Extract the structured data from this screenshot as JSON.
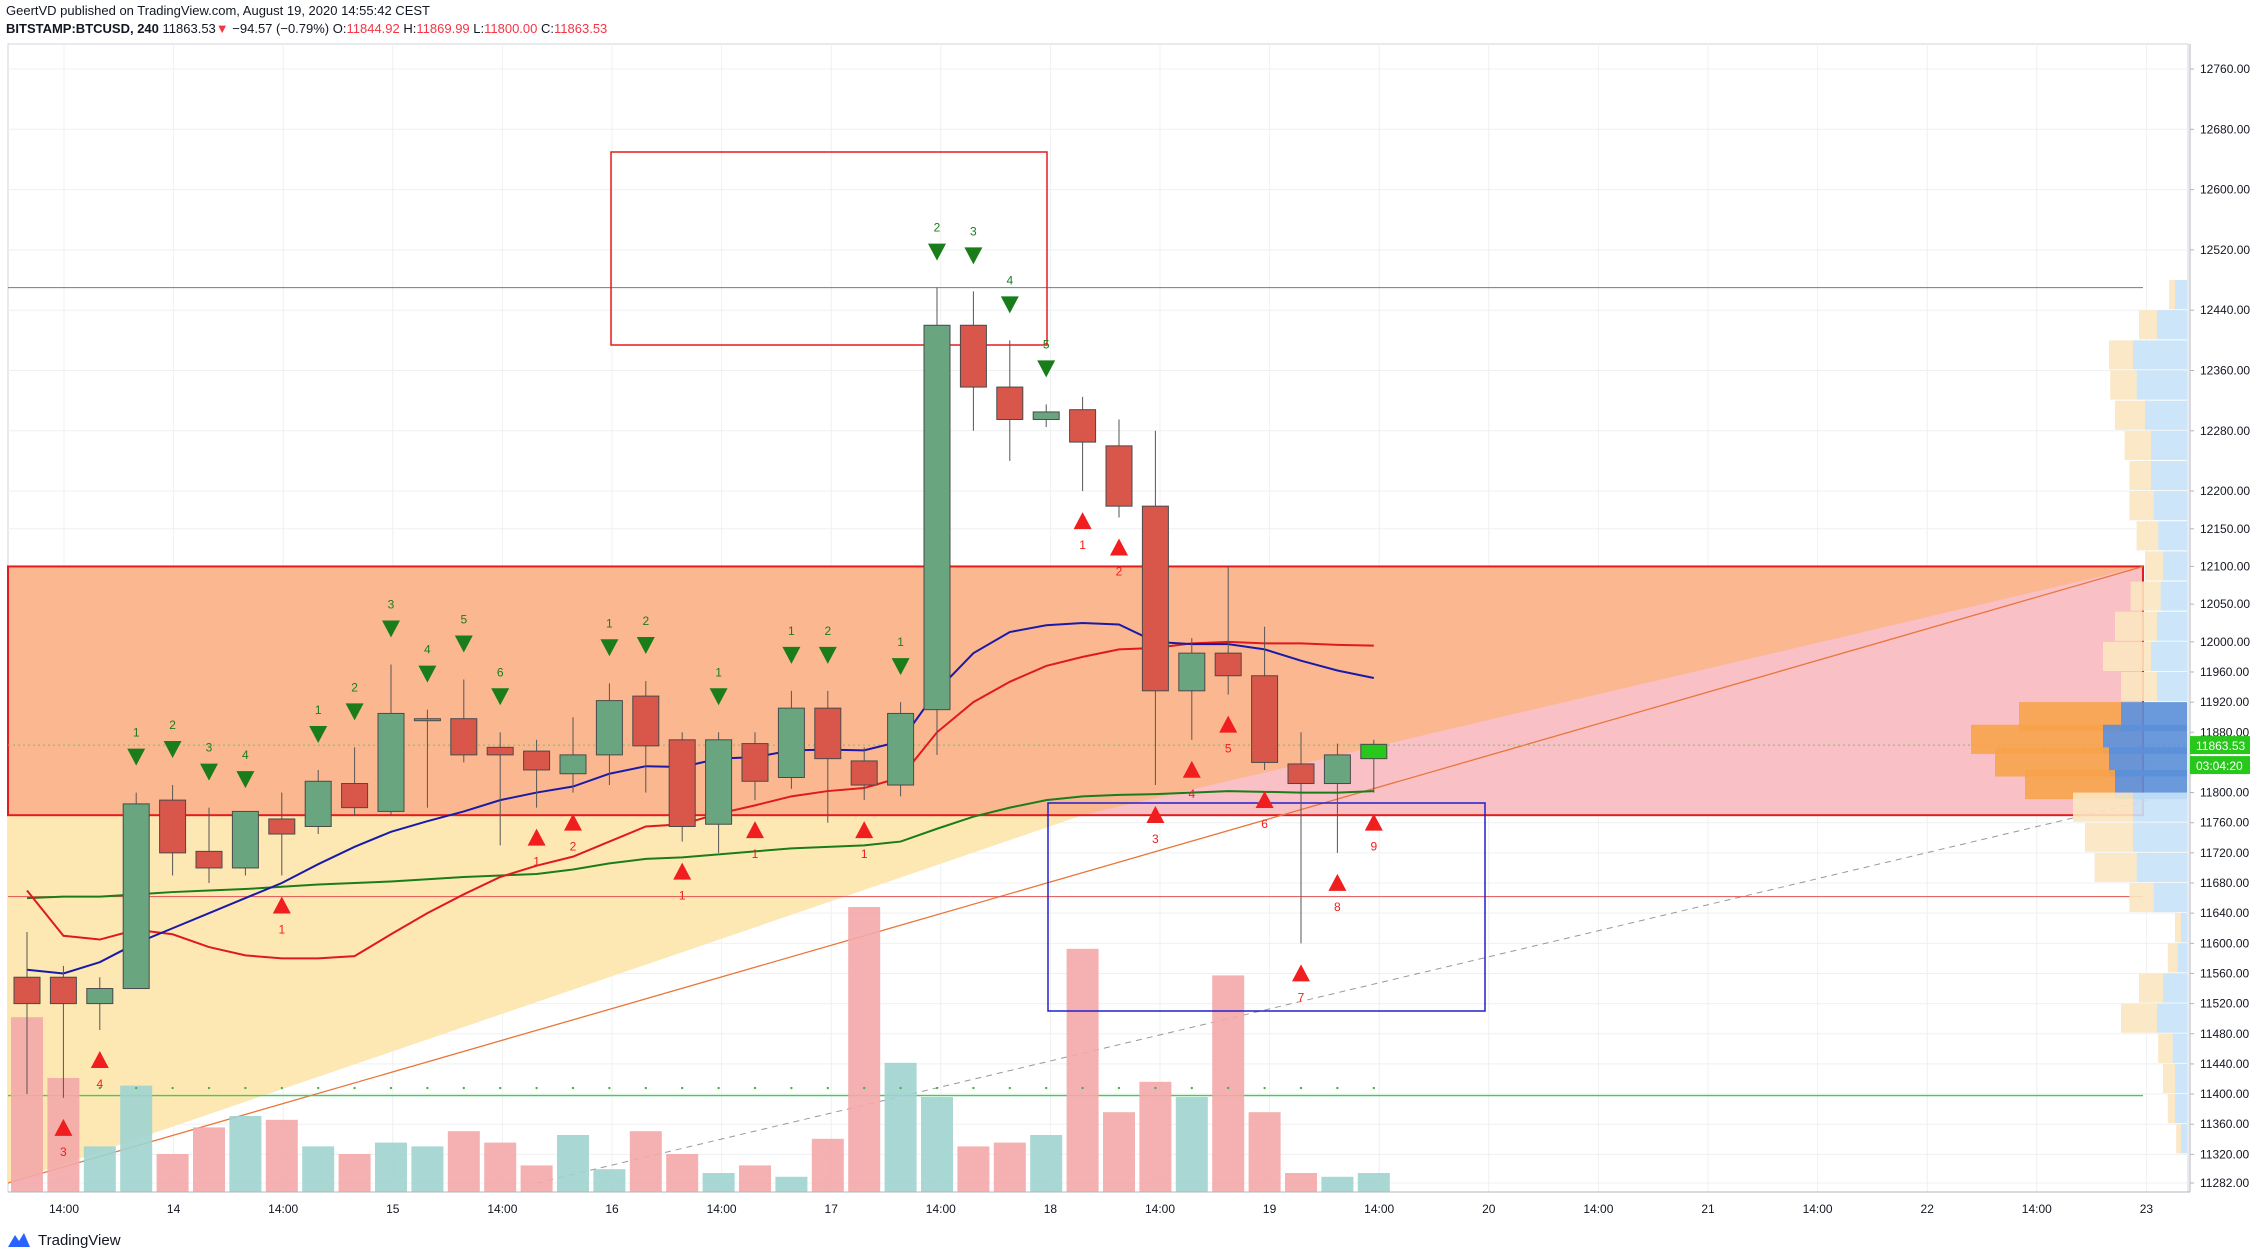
{
  "header": {
    "publisher_line": "GeertVD published on TradingView.com, August 19, 2020 14:55:42 CEST",
    "symbol": "BITSTAMP:BTCUSD, 240",
    "last": "11863.53",
    "change_arrow": "▼",
    "change": "−94.57 (−0.79%)",
    "o_label": "O:",
    "o_val": "11844.92",
    "h_label": "H:",
    "h_val": "11869.99",
    "l_label": "L:",
    "l_val": "11800.00",
    "c_label": "C:",
    "c_val": "11863.53"
  },
  "footer": {
    "brand": "TradingView"
  },
  "colors": {
    "up": "#69a57f",
    "down": "#d9574a",
    "ema_blue": "#1a1aa8",
    "ema_red": "#e0191e",
    "sma_green": "#1b7d19",
    "zone_orange": "#fbb48a",
    "zone_yellow": "#fde7b0",
    "zone_pink": "#f9c0c8",
    "box_red": "#e51c1c",
    "box_blue": "#2020cc",
    "td_green": "#1b7d19",
    "td_red": "#f01e1e",
    "price_tag": "#27c71b"
  },
  "chart_data": {
    "type": "candlestick",
    "interval": "240",
    "y_axis_ticks": [
      12760,
      12680,
      12600,
      12520,
      12440,
      12360,
      12280,
      12200,
      12150,
      12100,
      12050,
      12000,
      11960,
      11920,
      11880,
      11840,
      11800,
      11760,
      11720,
      11680,
      11640,
      11600,
      11560,
      11520,
      11480,
      11440,
      11400,
      11360,
      11320,
      11282
    ],
    "y_axis_labels": [
      "12760.00",
      "12680.00",
      "12600.00",
      "12520.00",
      "12440.00",
      "12360.00",
      "12280.00",
      "12200.00",
      "12150.00",
      "12100.00",
      "12050.00",
      "12000.00",
      "11960.00",
      "11920.00",
      "11880.00",
      "11840.00",
      "11800.00",
      "11760.00",
      "11720.00",
      "11680.00",
      "11640.00",
      "11600.00",
      "11560.00",
      "11520.00",
      "11480.00",
      "11440.00",
      "11400.00",
      "11360.00",
      "11320.00",
      "11282.00"
    ],
    "x_axis_labels": [
      "14:00",
      "14",
      "14:00",
      "15",
      "14:00",
      "16",
      "14:00",
      "17",
      "14:00",
      "18",
      "14:00",
      "19",
      "14:00",
      "20",
      "14:00",
      "21",
      "14:00",
      "22",
      "14:00",
      "23"
    ],
    "last_price_tag": "11863.53",
    "countdown_tag": "03:04:20",
    "candles": [
      {
        "o": 11555,
        "h": 11615,
        "l": 11400,
        "c": 11520
      },
      {
        "o": 11555,
        "h": 11570,
        "l": 11395,
        "c": 11520
      },
      {
        "o": 11520,
        "h": 11555,
        "l": 11485,
        "c": 11540
      },
      {
        "o": 11540,
        "h": 11800,
        "l": 11540,
        "c": 11785
      },
      {
        "o": 11790,
        "h": 11810,
        "l": 11690,
        "c": 11720
      },
      {
        "o": 11722,
        "h": 11780,
        "l": 11680,
        "c": 11700
      },
      {
        "o": 11700,
        "h": 11770,
        "l": 11690,
        "c": 11775
      },
      {
        "o": 11765,
        "h": 11800,
        "l": 11690,
        "c": 11745
      },
      {
        "o": 11755,
        "h": 11830,
        "l": 11745,
        "c": 11815
      },
      {
        "o": 11812,
        "h": 11860,
        "l": 11770,
        "c": 11780
      },
      {
        "o": 11775,
        "h": 11970,
        "l": 11770,
        "c": 11905
      },
      {
        "o": 11898,
        "h": 11910,
        "l": 11780,
        "c": 11898
      },
      {
        "o": 11898,
        "h": 11950,
        "l": 11840,
        "c": 11850
      },
      {
        "o": 11860,
        "h": 11880,
        "l": 11730,
        "c": 11850
      },
      {
        "o": 11855,
        "h": 11870,
        "l": 11780,
        "c": 11830
      },
      {
        "o": 11825,
        "h": 11900,
        "l": 11800,
        "c": 11850
      },
      {
        "o": 11850,
        "h": 11945,
        "l": 11810,
        "c": 11922
      },
      {
        "o": 11928,
        "h": 11948,
        "l": 11800,
        "c": 11862
      },
      {
        "o": 11870,
        "h": 11880,
        "l": 11735,
        "c": 11755
      },
      {
        "o": 11758,
        "h": 11880,
        "l": 11720,
        "c": 11870
      },
      {
        "o": 11865,
        "h": 11880,
        "l": 11790,
        "c": 11815
      },
      {
        "o": 11820,
        "h": 11935,
        "l": 11805,
        "c": 11912
      },
      {
        "o": 11912,
        "h": 11935,
        "l": 11760,
        "c": 11845
      },
      {
        "o": 11842,
        "h": 11860,
        "l": 11790,
        "c": 11810
      },
      {
        "o": 11810,
        "h": 11920,
        "l": 11795,
        "c": 11905
      },
      {
        "o": 11910,
        "h": 12470,
        "l": 11850,
        "c": 12420
      },
      {
        "o": 12420,
        "h": 12465,
        "l": 12280,
        "c": 12338
      },
      {
        "o": 12338,
        "h": 12400,
        "l": 12240,
        "c": 12295
      },
      {
        "o": 12295,
        "h": 12315,
        "l": 12285,
        "c": 12305
      },
      {
        "o": 12308,
        "h": 12325,
        "l": 12200,
        "c": 12265
      },
      {
        "o": 12260,
        "h": 12295,
        "l": 12165,
        "c": 12180
      },
      {
        "o": 12180,
        "h": 12280,
        "l": 11810,
        "c": 11935
      },
      {
        "o": 11935,
        "h": 12005,
        "l": 11870,
        "c": 11985
      },
      {
        "o": 11985,
        "h": 12100,
        "l": 11930,
        "c": 11955
      },
      {
        "o": 11955,
        "h": 12020,
        "l": 11830,
        "c": 11840
      },
      {
        "o": 11838,
        "h": 11880,
        "l": 11600,
        "c": 11812
      },
      {
        "o": 11812,
        "h": 11865,
        "l": 11720,
        "c": 11850
      },
      {
        "o": 11845,
        "h": 11870,
        "l": 11800,
        "c": 11864
      }
    ],
    "volume": [
      0.46,
      0.3,
      0.12,
      0.28,
      0.1,
      0.17,
      0.2,
      0.19,
      0.12,
      0.1,
      0.13,
      0.12,
      0.16,
      0.13,
      0.07,
      0.15,
      0.06,
      0.16,
      0.1,
      0.05,
      0.07,
      0.04,
      0.14,
      0.75,
      0.34,
      0.25,
      0.12,
      0.13,
      0.15,
      0.64,
      0.21,
      0.29,
      0.25,
      0.57,
      0.21,
      0.05,
      0.04,
      0.05
    ],
    "ema_blue": [
      11565,
      11560,
      11575,
      11600,
      11620,
      11640,
      11660,
      11680,
      11705,
      11728,
      11748,
      11762,
      11775,
      11790,
      11800,
      11808,
      11825,
      11835,
      11834,
      11845,
      11847,
      11856,
      11857,
      11856,
      11868,
      11935,
      11985,
      12013,
      12022,
      12025,
      12023,
      12000,
      11997,
      11997,
      11990,
      11975,
      11962,
      11952
    ],
    "ema_red": [
      11670,
      11610,
      11605,
      11618,
      11612,
      11595,
      11584,
      11580,
      11580,
      11583,
      11612,
      11640,
      11665,
      11688,
      11703,
      11715,
      11735,
      11755,
      11758,
      11772,
      11783,
      11795,
      11802,
      11806,
      11820,
      11880,
      11920,
      11947,
      11968,
      11980,
      11990,
      11992,
      11998,
      12000,
      11998,
      11998,
      11996,
      11995
    ],
    "sma_green": [
      11660,
      11662,
      11662,
      11665,
      11668,
      11670,
      11672,
      11675,
      11678,
      11680,
      11682,
      11685,
      11688,
      11690,
      11692,
      11698,
      11706,
      11712,
      11714,
      11718,
      11722,
      11726,
      11728,
      11730,
      11735,
      11752,
      11768,
      11780,
      11790,
      11795,
      11797,
      11798,
      11800,
      11802,
      11801,
      11800,
      11800,
      11802
    ],
    "td_sell": [
      {
        "i": 3,
        "n": "1"
      },
      {
        "i": 4,
        "n": "2"
      },
      {
        "i": 5,
        "n": "3"
      },
      {
        "i": 6,
        "n": "4"
      },
      {
        "i": 8,
        "n": "1"
      },
      {
        "i": 9,
        "n": "2"
      },
      {
        "i": 10,
        "n": "3"
      },
      {
        "i": 11,
        "n": "4"
      },
      {
        "i": 12,
        "n": "5"
      },
      {
        "i": 13,
        "n": "6"
      },
      {
        "i": 16,
        "n": "1"
      },
      {
        "i": 17,
        "n": "2"
      },
      {
        "i": 19,
        "n": "1"
      },
      {
        "i": 21,
        "n": "1"
      },
      {
        "i": 22,
        "n": "2"
      },
      {
        "i": 24,
        "n": "1"
      },
      {
        "i": 25,
        "n": "2"
      },
      {
        "i": 26,
        "n": "3"
      },
      {
        "i": 27,
        "n": "4"
      },
      {
        "i": 28,
        "n": "5"
      }
    ],
    "td_buy": [
      {
        "i": 1,
        "n": "3"
      },
      {
        "i": 2,
        "n": "4"
      },
      {
        "i": 7,
        "n": "1"
      },
      {
        "i": 14,
        "n": "1"
      },
      {
        "i": 15,
        "n": "2"
      },
      {
        "i": 18,
        "n": "1"
      },
      {
        "i": 20,
        "n": "1"
      },
      {
        "i": 23,
        "n": "1"
      },
      {
        "i": 29,
        "n": "1"
      },
      {
        "i": 30,
        "n": "2"
      },
      {
        "i": 31,
        "n": "3"
      },
      {
        "i": 32,
        "n": "4"
      },
      {
        "i": 33,
        "n": "5"
      },
      {
        "i": 34,
        "n": "6"
      },
      {
        "i": 35,
        "n": "7"
      },
      {
        "i": 36,
        "n": "8"
      },
      {
        "i": 37,
        "n": "9"
      }
    ]
  }
}
